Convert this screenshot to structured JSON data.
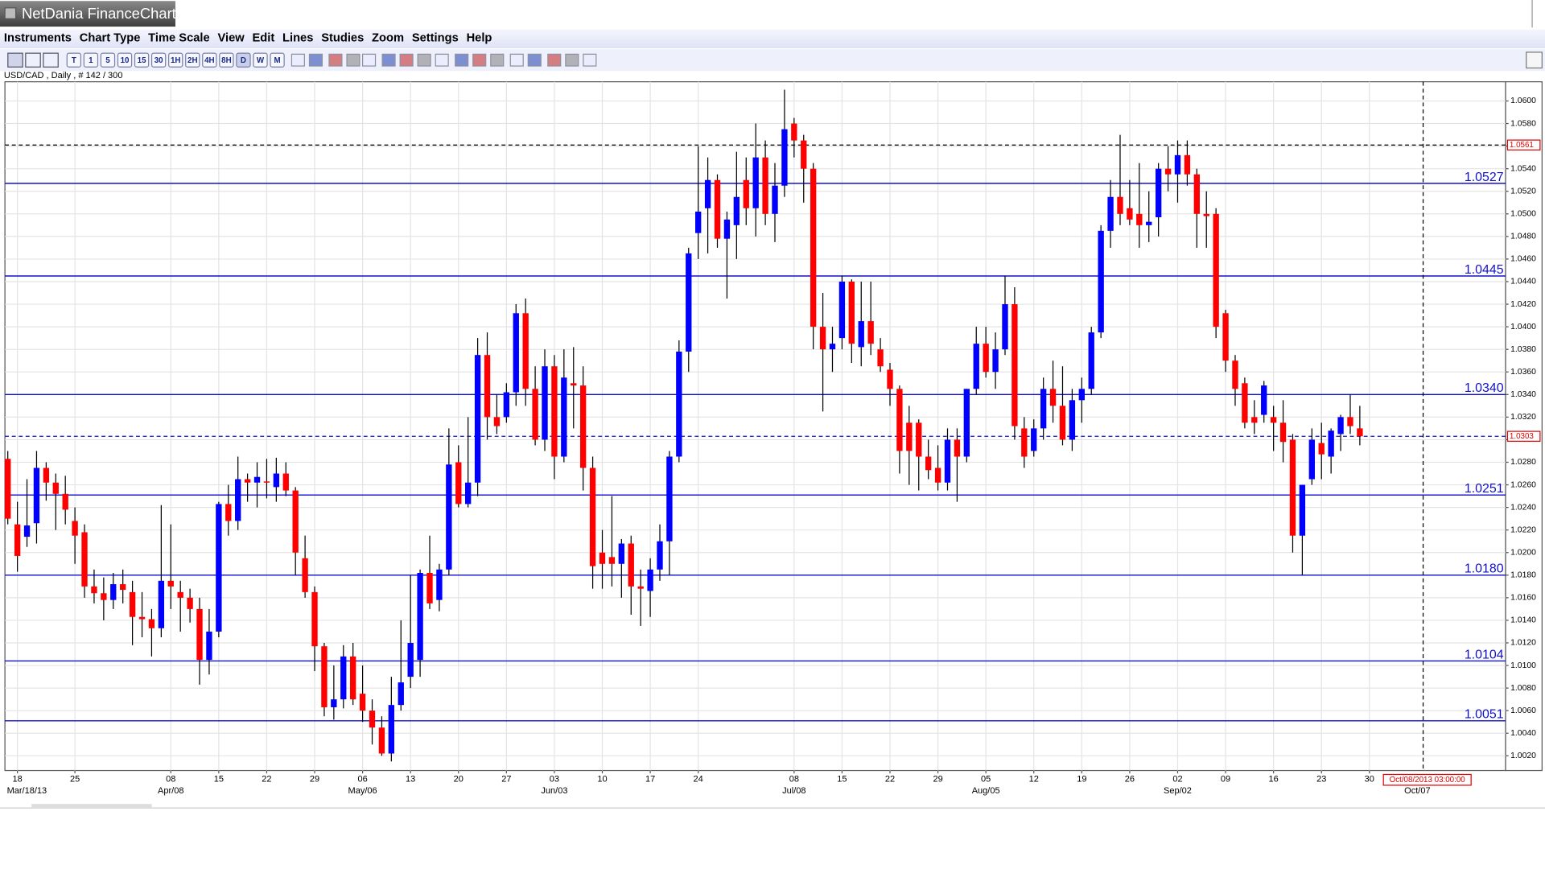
{
  "app": {
    "title": "NetDania FinanceChart",
    "menu": [
      "Instruments",
      "Chart Type",
      "Time Scale",
      "View",
      "Edit",
      "Lines",
      "Studies",
      "Zoom",
      "Settings",
      "Help"
    ],
    "toolbar": [
      "T",
      "1",
      "5",
      "10",
      "15",
      "30",
      "1H",
      "2H",
      "4H",
      "8H",
      "D",
      "W",
      "M"
    ],
    "info": "USD/CAD , Daily , # 142 / 300"
  },
  "chart_data": {
    "type": "candlestick",
    "up_color": "#0000ff",
    "down_color": "#ff0000",
    "x": [
      0,
      1,
      2,
      3,
      4,
      5,
      6,
      7,
      8,
      9,
      10,
      11,
      12,
      13,
      14,
      15,
      16,
      17,
      18,
      19,
      20,
      21,
      22,
      23,
      24,
      25,
      26,
      27,
      28,
      29,
      30,
      31,
      32,
      33,
      34,
      35,
      36,
      37,
      38,
      39,
      40,
      41,
      42,
      43,
      44,
      45,
      46,
      47,
      48,
      49,
      50,
      51,
      52,
      53,
      54,
      55,
      56,
      57,
      58,
      59,
      60,
      61,
      62,
      63,
      64,
      65,
      66,
      67,
      68,
      69,
      70,
      71,
      72,
      73,
      74,
      75,
      76,
      77,
      78,
      79,
      80,
      81,
      82,
      83,
      84,
      85,
      86,
      87,
      88,
      89,
      90,
      91,
      92,
      93,
      94,
      95,
      96,
      97,
      98,
      99,
      100,
      101,
      102,
      103,
      104,
      105,
      106,
      107,
      108,
      109,
      110,
      111,
      112,
      113,
      114,
      115,
      116,
      117,
      118,
      119,
      120,
      121,
      122,
      123,
      124,
      125,
      126,
      127,
      128,
      129,
      130,
      131,
      132,
      133,
      134,
      135,
      136,
      137,
      138,
      139,
      140,
      141
    ],
    "open": [
      1.0283,
      1.0225,
      1.0214,
      1.0226,
      1.0275,
      1.0262,
      1.0252,
      1.0228,
      1.0218,
      1.017,
      1.0164,
      1.0158,
      1.0172,
      1.0165,
      1.0143,
      1.0141,
      1.0133,
      1.0175,
      1.0165,
      1.016,
      1.015,
      1.0105,
      1.013,
      1.0243,
      1.0228,
      1.0265,
      1.0262,
      1.0263,
      1.0258,
      1.027,
      1.0255,
      1.0195,
      1.0165,
      1.0117,
      1.0063,
      1.007,
      1.0108,
      1.0075,
      1.006,
      1.0045,
      1.0022,
      1.0065,
      1.009,
      1.0105,
      1.0182,
      1.0158,
      1.0185,
      1.028,
      1.0243,
      1.0262,
      1.0375,
      1.032,
      1.032,
      1.0342,
      1.0412,
      1.0345,
      1.03,
      1.0365,
      1.0285,
      1.035,
      1.0348,
      1.0275,
      1.02,
      1.0196,
      1.019,
      1.0208,
      1.017,
      1.0166,
      1.0185,
      1.021,
      1.0285,
      1.0378,
      1.0483,
      1.0505,
      1.053,
      1.0478,
      1.049,
      1.053,
      1.0505,
      1.055,
      1.05,
      1.0525,
      1.058,
      1.0565,
      1.054,
      1.04,
      1.038,
      1.039,
      1.044,
      1.0382,
      1.0405,
      1.038,
      1.0362,
      1.0345,
      1.0315,
      1.0315,
      1.0285,
      1.0275,
      1.0262,
      1.03,
      1.0285,
      1.0345,
      1.0385,
      1.036,
      1.038,
      1.042,
      1.031,
      1.029,
      1.031,
      1.0345,
      1.033,
      1.03,
      1.0335,
      1.0345,
      1.0395,
      1.0485,
      1.0515,
      1.0505,
      1.05,
      1.049,
      1.0497,
      1.054,
      1.0535,
      1.0552,
      1.0535,
      1.05,
      1.05,
      1.0412,
      1.037,
      1.035,
      1.032,
      1.0322,
      1.032,
      1.0315,
      1.03,
      1.0215,
      1.0265,
      1.0297,
      1.0285,
      1.0305,
      1.032,
      1.031
    ],
    "high": [
      1.029,
      1.0245,
      1.0265,
      1.029,
      1.028,
      1.027,
      1.0268,
      1.024,
      1.0225,
      1.0185,
      1.0178,
      1.0182,
      1.0185,
      1.0175,
      1.0165,
      1.015,
      1.0242,
      1.0225,
      1.0175,
      1.0168,
      1.016,
      1.015,
      1.0245,
      1.026,
      1.0285,
      1.027,
      1.028,
      1.0283,
      1.0284,
      1.028,
      1.0258,
      1.0215,
      1.017,
      1.012,
      1.01,
      1.0118,
      1.012,
      1.01,
      1.007,
      1.0055,
      1.009,
      1.014,
      1.018,
      1.0185,
      1.0215,
      1.019,
      1.031,
      1.0295,
      1.032,
      1.039,
      1.0395,
      1.034,
      1.035,
      1.042,
      1.0425,
      1.0365,
      1.038,
      1.0375,
      1.038,
      1.0382,
      1.0365,
      1.0285,
      1.022,
      1.025,
      1.0212,
      1.0215,
      1.0185,
      1.0195,
      1.0225,
      1.029,
      1.0388,
      1.047,
      1.056,
      1.055,
      1.0535,
      1.0502,
      1.0555,
      1.055,
      1.058,
      1.0565,
      1.0545,
      1.061,
      1.0585,
      1.057,
      1.0545,
      1.043,
      1.04,
      1.0445,
      1.0442,
      1.044,
      1.044,
      1.039,
      1.0368,
      1.0348,
      1.033,
      1.0318,
      1.03,
      1.0295,
      1.031,
      1.031,
      1.0345,
      1.04,
      1.04,
      1.0395,
      1.0445,
      1.0435,
      1.032,
      1.0318,
      1.0355,
      1.037,
      1.0365,
      1.0345,
      1.0355,
      1.04,
      1.049,
      1.053,
      1.057,
      1.053,
      1.0545,
      1.052,
      1.0545,
      1.056,
      1.0565,
      1.0565,
      1.054,
      1.052,
      1.0505,
      1.0415,
      1.0375,
      1.0355,
      1.0335,
      1.0352,
      1.033,
      1.0335,
      1.0305,
      1.026,
      1.031,
      1.0315,
      1.031,
      1.0322,
      1.034,
      1.033
    ],
    "low": [
      1.0225,
      1.0183,
      1.0205,
      1.0208,
      1.0246,
      1.022,
      1.0225,
      1.019,
      1.016,
      1.0155,
      1.014,
      1.015,
      1.0155,
      1.0118,
      1.0125,
      1.0108,
      1.0125,
      1.015,
      1.013,
      1.0138,
      1.0083,
      1.0092,
      1.0125,
      1.0215,
      1.022,
      1.0245,
      1.024,
      1.0248,
      1.0245,
      1.025,
      1.018,
      1.016,
      1.0095,
      1.0055,
      1.0052,
      1.0062,
      1.0065,
      1.005,
      1.003,
      1.002,
      1.0015,
      1.006,
      1.008,
      1.009,
      1.015,
      1.0148,
      1.018,
      1.024,
      1.024,
      1.025,
      1.03,
      1.0305,
      1.0315,
      1.033,
      1.033,
      1.0295,
      1.029,
      1.0265,
      1.028,
      1.031,
      1.0255,
      1.0168,
      1.0168,
      1.017,
      1.016,
      1.0145,
      1.0135,
      1.0143,
      1.0175,
      1.018,
      1.028,
      1.036,
      1.046,
      1.0465,
      1.047,
      1.0425,
      1.046,
      1.049,
      1.048,
      1.049,
      1.0475,
      1.0515,
      1.055,
      1.051,
      1.038,
      1.0325,
      1.036,
      1.038,
      1.0368,
      1.0365,
      1.0375,
      1.036,
      1.033,
      1.027,
      1.026,
      1.0255,
      1.0265,
      1.0255,
      1.0255,
      1.0245,
      1.028,
      1.034,
      1.0355,
      1.0345,
      1.0375,
      1.03,
      1.0275,
      1.0285,
      1.03,
      1.0315,
      1.0295,
      1.029,
      1.0315,
      1.034,
      1.039,
      1.047,
      1.049,
      1.049,
      1.047,
      1.0475,
      1.048,
      1.052,
      1.051,
      1.0525,
      1.047,
      1.047,
      1.039,
      1.036,
      1.033,
      1.031,
      1.0305,
      1.0315,
      1.029,
      1.028,
      1.02,
      1.018,
      1.026,
      1.0265,
      1.027,
      1.029,
      1.0305,
      1.0295
    ],
    "close": [
      1.023,
      1.0197,
      1.0224,
      1.0275,
      1.0262,
      1.0252,
      1.0238,
      1.0215,
      1.017,
      1.0164,
      1.0158,
      1.0172,
      1.0167,
      1.0143,
      1.0141,
      1.0133,
      1.0175,
      1.017,
      1.016,
      1.015,
      1.0105,
      1.013,
      1.0243,
      1.0228,
      1.0265,
      1.0262,
      1.0267,
      1.0262,
      1.027,
      1.0255,
      1.02,
      1.0165,
      1.0117,
      1.0063,
      1.007,
      1.0108,
      1.007,
      1.006,
      1.0045,
      1.0022,
      1.0065,
      1.0085,
      1.012,
      1.0182,
      1.0155,
      1.0185,
      1.0278,
      1.0243,
      1.0262,
      1.0375,
      1.032,
      1.0312,
      1.0342,
      1.0412,
      1.0345,
      1.03,
      1.0365,
      1.0285,
      1.0355,
      1.0348,
      1.0275,
      1.0188,
      1.019,
      1.019,
      1.0208,
      1.017,
      1.0168,
      1.0185,
      1.021,
      1.0285,
      1.0378,
      1.0465,
      1.0502,
      1.053,
      1.0478,
      1.0495,
      1.0515,
      1.0505,
      1.055,
      1.05,
      1.0525,
      1.0575,
      1.0565,
      1.054,
      1.04,
      1.038,
      1.0385,
      1.044,
      1.0385,
      1.0405,
      1.0385,
      1.0365,
      1.0345,
      1.029,
      1.029,
      1.0285,
      1.0273,
      1.0262,
      1.03,
      1.0285,
      1.0345,
      1.0385,
      1.036,
      1.038,
      1.042,
      1.0312,
      1.0285,
      1.031,
      1.0345,
      1.033,
      1.03,
      1.0335,
      1.0345,
      1.0395,
      1.0485,
      1.0515,
      1.05,
      1.0495,
      1.049,
      1.0493,
      1.054,
      1.0535,
      1.0552,
      1.0535,
      1.05,
      1.0498,
      1.04,
      1.037,
      1.0345,
      1.0315,
      1.0315,
      1.0348,
      1.0315,
      1.0298,
      1.0215,
      1.026,
      1.03,
      1.0287,
      1.0308,
      1.032,
      1.0312,
      1.0303
    ],
    "xlim": [
      -0.3,
      156.2
    ],
    "ylim": [
      1.0007,
      1.0617
    ],
    "grid": true,
    "xticks": [
      {
        "value": 1,
        "label": "18"
      },
      {
        "value": 7,
        "label": "25"
      },
      {
        "value": 17,
        "label": "08"
      },
      {
        "value": 22,
        "label": "15"
      },
      {
        "value": 27,
        "label": "22"
      },
      {
        "value": 32,
        "label": "29"
      },
      {
        "value": 37,
        "label": "06"
      },
      {
        "value": 42,
        "label": "13"
      },
      {
        "value": 47,
        "label": "20"
      },
      {
        "value": 52,
        "label": "27"
      },
      {
        "value": 57,
        "label": "03"
      },
      {
        "value": 62,
        "label": "10"
      },
      {
        "value": 67,
        "label": "17"
      },
      {
        "value": 72,
        "label": "24"
      },
      {
        "value": 82,
        "label": "08"
      },
      {
        "value": 87,
        "label": "15"
      },
      {
        "value": 92,
        "label": "22"
      },
      {
        "value": 97,
        "label": "29"
      },
      {
        "value": 102,
        "label": "05"
      },
      {
        "value": 107,
        "label": "12"
      },
      {
        "value": 112,
        "label": "19"
      },
      {
        "value": 117,
        "label": "26"
      },
      {
        "value": 122,
        "label": "02"
      },
      {
        "value": 127,
        "label": "09"
      },
      {
        "value": 132,
        "label": "16"
      },
      {
        "value": 137,
        "label": "23"
      },
      {
        "value": 142,
        "label": "30"
      }
    ],
    "xticks_major": [
      {
        "value": 1,
        "label": "Mar/18/13"
      },
      {
        "value": 17,
        "label": "Apr/08"
      },
      {
        "value": 37,
        "label": "May/06"
      },
      {
        "value": 57,
        "label": "Jun/03"
      },
      {
        "value": 82,
        "label": "Jul/08"
      },
      {
        "value": 102,
        "label": "Aug/05"
      },
      {
        "value": 122,
        "label": "Sep/02"
      },
      {
        "value": 147,
        "label": "Oct/07"
      }
    ],
    "yticks": [
      {
        "value": 1.002,
        "label": "1.0020"
      },
      {
        "value": 1.004,
        "label": "1.0040"
      },
      {
        "value": 1.006,
        "label": "1.0060"
      },
      {
        "value": 1.008,
        "label": "1.0080"
      },
      {
        "value": 1.01,
        "label": "1.0100"
      },
      {
        "value": 1.012,
        "label": "1.0120"
      },
      {
        "value": 1.014,
        "label": "1.0140"
      },
      {
        "value": 1.016,
        "label": "1.0160"
      },
      {
        "value": 1.018,
        "label": "1.0180"
      },
      {
        "value": 1.02,
        "label": "1.0200"
      },
      {
        "value": 1.022,
        "label": "1.0220"
      },
      {
        "value": 1.024,
        "label": "1.0240"
      },
      {
        "value": 1.026,
        "label": "1.0260"
      },
      {
        "value": 1.028,
        "label": "1.0280"
      },
      {
        "value": 1.03,
        "label": "1.0300"
      },
      {
        "value": 1.032,
        "label": "1.0320"
      },
      {
        "value": 1.034,
        "label": "1.0340"
      },
      {
        "value": 1.036,
        "label": "1.0360"
      },
      {
        "value": 1.038,
        "label": "1.0380"
      },
      {
        "value": 1.04,
        "label": "1.0400"
      },
      {
        "value": 1.042,
        "label": "1.0420"
      },
      {
        "value": 1.044,
        "label": "1.0440"
      },
      {
        "value": 1.046,
        "label": "1.0460"
      },
      {
        "value": 1.048,
        "label": "1.0480"
      },
      {
        "value": 1.05,
        "label": "1.0500"
      },
      {
        "value": 1.052,
        "label": "1.0520"
      },
      {
        "value": 1.054,
        "label": "1.0540"
      },
      {
        "value": 1.056,
        "label": "1.0560"
      },
      {
        "value": 1.058,
        "label": "1.0580"
      },
      {
        "value": 1.06,
        "label": "1.0600"
      }
    ],
    "levels": [
      1.0527,
      1.0445,
      {
        "value": 1.034,
        "label": "1.0340"
      },
      1.0251,
      {
        "value": 1.018,
        "label": "1.0180"
      },
      1.0104,
      1.0051
    ],
    "level_color": "#1010c8",
    "price_lines": [
      {
        "value": 1.0561,
        "color": "#000000"
      },
      {
        "value": 1.0303,
        "color": "#1010c8"
      }
    ],
    "cursor": {
      "x": 147.6,
      "label": "Oct/08/2013 03:00:00"
    }
  }
}
